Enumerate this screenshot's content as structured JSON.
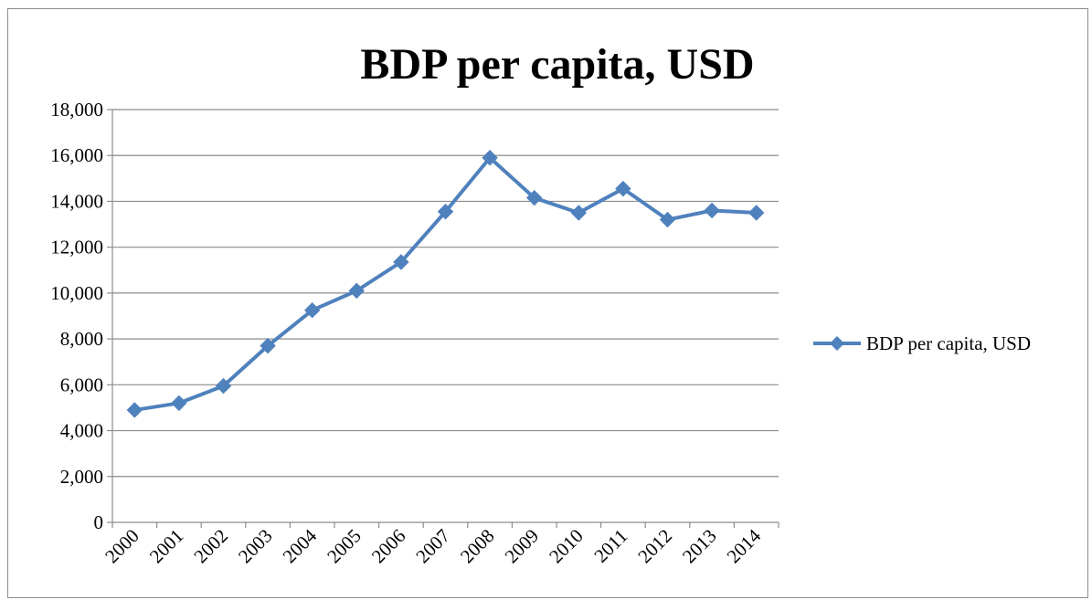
{
  "chart_data": {
    "type": "line",
    "title": "BDP per capita, USD",
    "xlabel": "",
    "ylabel": "",
    "categories": [
      "2000",
      "2001",
      "2002",
      "2003",
      "2004",
      "2005",
      "2006",
      "2007",
      "2008",
      "2009",
      "2010",
      "2011",
      "2012",
      "2013",
      "2014"
    ],
    "series": [
      {
        "name": "BDP per capita, USD",
        "values": [
          4900,
          5200,
          5950,
          7700,
          9250,
          10100,
          11350,
          13550,
          15900,
          14150,
          13500,
          14550,
          13200,
          13600,
          13500
        ]
      }
    ],
    "ylim": [
      0,
      18000
    ],
    "ytick_step": 2000,
    "yticks": [
      "0",
      "2,000",
      "4,000",
      "6,000",
      "8,000",
      "10,000",
      "12,000",
      "14,000",
      "16,000",
      "18,000"
    ],
    "grid": "horizontal",
    "legend_position": "right",
    "series_color": "#4f81bd"
  }
}
